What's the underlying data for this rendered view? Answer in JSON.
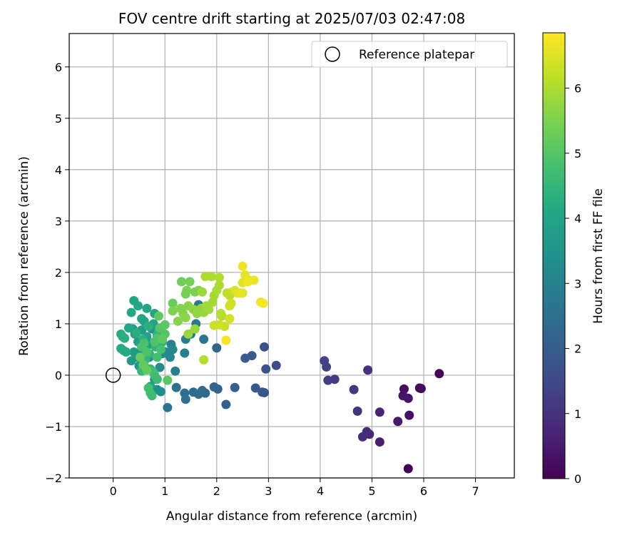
{
  "chart_data": {
    "type": "scatter",
    "title": "FOV centre drift starting at 2025/07/03 02:47:08",
    "xlabel": "Angular distance from reference (arcmin)",
    "ylabel": "Rotation from reference (arcmin)",
    "xlim": [
      -0.85,
      7.75
    ],
    "ylim": [
      -2.0,
      6.65
    ],
    "xticks": [
      0,
      1,
      2,
      3,
      4,
      5,
      6,
      7
    ],
    "yticks": [
      -2,
      -1,
      0,
      1,
      2,
      3,
      4,
      5,
      6
    ],
    "grid": true,
    "legend": {
      "placement": "top-right",
      "entries": [
        {
          "label": "Reference platepar",
          "marker": "open-circle"
        }
      ]
    },
    "reference_point": {
      "x": 0,
      "y": 0
    },
    "colorbar": {
      "label": "Hours from first FF file",
      "colormap": "viridis",
      "min": 0,
      "max": 6.85,
      "ticks": [
        0,
        1,
        2,
        3,
        4,
        5,
        6
      ]
    },
    "points": [
      {
        "x": 5.7,
        "y": -1.82,
        "c": 0.05
      },
      {
        "x": 6.3,
        "y": 0.03,
        "c": 0.1
      },
      {
        "x": 5.92,
        "y": -0.25,
        "c": 0.15
      },
      {
        "x": 5.95,
        "y": -0.26,
        "c": 0.2
      },
      {
        "x": 5.62,
        "y": -0.27,
        "c": 0.25
      },
      {
        "x": 5.72,
        "y": -0.78,
        "c": 0.3
      },
      {
        "x": 5.7,
        "y": -0.45,
        "c": 0.35
      },
      {
        "x": 5.6,
        "y": -0.4,
        "c": 0.4
      },
      {
        "x": 5.5,
        "y": -0.9,
        "c": 0.5
      },
      {
        "x": 5.15,
        "y": -1.3,
        "c": 0.6
      },
      {
        "x": 5.15,
        "y": -0.72,
        "c": 0.7
      },
      {
        "x": 4.95,
        "y": -1.15,
        "c": 0.8
      },
      {
        "x": 4.9,
        "y": -1.1,
        "c": 0.85
      },
      {
        "x": 4.82,
        "y": -1.2,
        "c": 0.9
      },
      {
        "x": 4.92,
        "y": 0.1,
        "c": 0.95
      },
      {
        "x": 4.72,
        "y": -0.7,
        "c": 1.0
      },
      {
        "x": 4.65,
        "y": -0.28,
        "c": 1.1
      },
      {
        "x": 4.28,
        "y": -0.08,
        "c": 1.2
      },
      {
        "x": 4.15,
        "y": -0.1,
        "c": 1.25
      },
      {
        "x": 4.12,
        "y": 0.16,
        "c": 1.3
      },
      {
        "x": 4.08,
        "y": 0.28,
        "c": 1.35
      },
      {
        "x": 3.15,
        "y": 0.19,
        "c": 1.6
      },
      {
        "x": 2.92,
        "y": 0.55,
        "c": 1.7
      },
      {
        "x": 2.95,
        "y": 0.12,
        "c": 1.75
      },
      {
        "x": 2.92,
        "y": -0.34,
        "c": 1.8
      },
      {
        "x": 2.88,
        "y": -0.33,
        "c": 1.85
      },
      {
        "x": 2.75,
        "y": -0.25,
        "c": 1.9
      },
      {
        "x": 2.68,
        "y": 0.38,
        "c": 1.95
      },
      {
        "x": 2.55,
        "y": 0.33,
        "c": 2.0
      },
      {
        "x": 2.35,
        "y": -0.24,
        "c": 2.05
      },
      {
        "x": 2.18,
        "y": -0.57,
        "c": 2.1
      },
      {
        "x": 2.0,
        "y": 0.53,
        "c": 2.15
      },
      {
        "x": 2.02,
        "y": -0.27,
        "c": 2.2
      },
      {
        "x": 1.95,
        "y": -0.23,
        "c": 2.25
      },
      {
        "x": 1.78,
        "y": -0.35,
        "c": 2.3
      },
      {
        "x": 1.72,
        "y": -0.3,
        "c": 2.35
      },
      {
        "x": 1.65,
        "y": -0.37,
        "c": 2.4
      },
      {
        "x": 1.55,
        "y": -0.33,
        "c": 2.45
      },
      {
        "x": 1.38,
        "y": -0.35,
        "c": 2.5
      },
      {
        "x": 1.4,
        "y": -0.47,
        "c": 2.55
      },
      {
        "x": 1.22,
        "y": -0.24,
        "c": 2.6
      },
      {
        "x": 1.05,
        "y": -0.63,
        "c": 2.65
      },
      {
        "x": 1.65,
        "y": 1.37,
        "c": 2.7
      },
      {
        "x": 1.75,
        "y": 0.7,
        "c": 2.75
      },
      {
        "x": 1.6,
        "y": 1.0,
        "c": 2.8
      },
      {
        "x": 1.5,
        "y": 0.8,
        "c": 2.85
      },
      {
        "x": 1.4,
        "y": 0.7,
        "c": 2.9
      },
      {
        "x": 1.38,
        "y": 0.43,
        "c": 2.95
      },
      {
        "x": 1.2,
        "y": 0.08,
        "c": 3.0
      },
      {
        "x": 1.12,
        "y": 0.6,
        "c": 3.05
      },
      {
        "x": 1.02,
        "y": 0.45,
        "c": 3.1
      },
      {
        "x": 1.1,
        "y": 0.35,
        "c": 3.15
      },
      {
        "x": 1.15,
        "y": 0.5,
        "c": 3.2
      },
      {
        "x": 0.95,
        "y": 0.42,
        "c": 3.25
      },
      {
        "x": 0.9,
        "y": 0.15,
        "c": 3.3
      },
      {
        "x": 0.92,
        "y": -0.32,
        "c": 3.35
      },
      {
        "x": 0.85,
        "y": -0.28,
        "c": 3.4
      },
      {
        "x": 0.8,
        "y": -0.08,
        "c": 3.45
      },
      {
        "x": 0.75,
        "y": 0.9,
        "c": 3.5
      },
      {
        "x": 0.7,
        "y": 0.35,
        "c": 3.55
      },
      {
        "x": 0.62,
        "y": 0.42,
        "c": 3.6
      },
      {
        "x": 0.55,
        "y": 0.5,
        "c": 3.62
      },
      {
        "x": 0.5,
        "y": 0.18,
        "c": 3.65
      },
      {
        "x": 0.45,
        "y": 0.35,
        "c": 3.68
      },
      {
        "x": 0.35,
        "y": 0.28,
        "c": 3.7
      },
      {
        "x": 0.4,
        "y": 0.45,
        "c": 3.72
      },
      {
        "x": 0.38,
        "y": 0.9,
        "c": 3.75
      },
      {
        "x": 0.42,
        "y": 0.8,
        "c": 3.78
      },
      {
        "x": 0.48,
        "y": 0.65,
        "c": 3.8
      },
      {
        "x": 0.55,
        "y": 0.88,
        "c": 3.82
      },
      {
        "x": 0.65,
        "y": 0.75,
        "c": 3.85
      },
      {
        "x": 0.7,
        "y": 0.6,
        "c": 3.88
      },
      {
        "x": 0.72,
        "y": -0.22,
        "c": 3.9
      },
      {
        "x": 0.8,
        "y": 1.2,
        "c": 3.92
      },
      {
        "x": 0.78,
        "y": 1.0,
        "c": 3.95
      },
      {
        "x": 0.65,
        "y": 1.3,
        "c": 3.98
      },
      {
        "x": 0.6,
        "y": 1.05,
        "c": 4.0
      },
      {
        "x": 0.55,
        "y": 1.1,
        "c": 4.02
      },
      {
        "x": 0.48,
        "y": 1.35,
        "c": 4.05
      },
      {
        "x": 0.4,
        "y": 1.45,
        "c": 4.08
      },
      {
        "x": 0.35,
        "y": 1.22,
        "c": 4.1
      },
      {
        "x": 0.3,
        "y": 0.92,
        "c": 4.12
      },
      {
        "x": 0.25,
        "y": 0.45,
        "c": 4.15
      },
      {
        "x": 0.2,
        "y": 0.48,
        "c": 4.18
      },
      {
        "x": 0.15,
        "y": 0.52,
        "c": 4.2
      },
      {
        "x": 0.18,
        "y": 0.75,
        "c": 4.22
      },
      {
        "x": 0.15,
        "y": 0.8,
        "c": 4.25
      },
      {
        "x": 0.22,
        "y": 0.72,
        "c": 4.28
      },
      {
        "x": 0.45,
        "y": 0.82,
        "c": 4.3
      },
      {
        "x": 0.58,
        "y": 0.7,
        "c": 4.32
      },
      {
        "x": 0.68,
        "y": 0.95,
        "c": 4.35
      },
      {
        "x": 0.85,
        "y": 0.78,
        "c": 4.38
      },
      {
        "x": 0.9,
        "y": 0.6,
        "c": 4.4
      },
      {
        "x": 0.95,
        "y": 0.65,
        "c": 4.42
      },
      {
        "x": 0.88,
        "y": 0.85,
        "c": 4.45
      },
      {
        "x": 0.82,
        "y": 0.55,
        "c": 4.48
      },
      {
        "x": 0.7,
        "y": 0.42,
        "c": 4.5
      },
      {
        "x": 0.62,
        "y": 0.3,
        "c": 4.52
      },
      {
        "x": 0.55,
        "y": 0.08,
        "c": 4.55
      },
      {
        "x": 0.62,
        "y": 0.15,
        "c": 4.58
      },
      {
        "x": 0.72,
        "y": 0.12,
        "c": 4.6
      },
      {
        "x": 0.8,
        "y": 0.0,
        "c": 4.62
      },
      {
        "x": 0.85,
        "y": -0.08,
        "c": 4.65
      },
      {
        "x": 0.75,
        "y": -0.4,
        "c": 4.7
      },
      {
        "x": 0.72,
        "y": -0.35,
        "c": 4.72
      },
      {
        "x": 0.68,
        "y": -0.25,
        "c": 4.75
      },
      {
        "x": 0.78,
        "y": 0.05,
        "c": 4.78
      },
      {
        "x": 0.85,
        "y": 0.35,
        "c": 4.8
      },
      {
        "x": 0.92,
        "y": 0.5,
        "c": 4.82
      },
      {
        "x": 0.6,
        "y": 0.62,
        "c": 4.85
      },
      {
        "x": 0.55,
        "y": 0.55,
        "c": 4.88
      },
      {
        "x": 0.65,
        "y": 0.45,
        "c": 4.9
      },
      {
        "x": 0.8,
        "y": 0.65,
        "c": 4.92
      },
      {
        "x": 0.85,
        "y": 0.72,
        "c": 4.95
      },
      {
        "x": 0.9,
        "y": 0.92,
        "c": 4.98
      },
      {
        "x": 1.0,
        "y": 0.8,
        "c": 5.0
      },
      {
        "x": 1.05,
        "y": -0.1,
        "c": 5.05
      },
      {
        "x": 1.0,
        "y": 0.98,
        "c": 5.1
      },
      {
        "x": 0.95,
        "y": 0.7,
        "c": 5.12
      },
      {
        "x": 0.88,
        "y": 1.15,
        "c": 5.15
      },
      {
        "x": 0.58,
        "y": 0.2,
        "c": 5.18
      },
      {
        "x": 0.65,
        "y": 0.1,
        "c": 5.2
      },
      {
        "x": 0.52,
        "y": 0.35,
        "c": 5.22
      },
      {
        "x": 1.15,
        "y": 1.4,
        "c": 5.3
      },
      {
        "x": 1.32,
        "y": 1.82,
        "c": 5.35
      },
      {
        "x": 1.48,
        "y": 1.82,
        "c": 5.4
      },
      {
        "x": 1.4,
        "y": 1.58,
        "c": 5.42
      },
      {
        "x": 1.42,
        "y": 1.65,
        "c": 5.45
      },
      {
        "x": 1.58,
        "y": 1.62,
        "c": 5.48
      },
      {
        "x": 1.65,
        "y": 1.65,
        "c": 5.5
      },
      {
        "x": 1.15,
        "y": 1.25,
        "c": 5.52
      },
      {
        "x": 1.3,
        "y": 1.3,
        "c": 5.55
      },
      {
        "x": 1.25,
        "y": 1.05,
        "c": 5.58
      },
      {
        "x": 1.35,
        "y": 1.2,
        "c": 5.6
      },
      {
        "x": 1.45,
        "y": 1.35,
        "c": 5.62
      },
      {
        "x": 1.4,
        "y": 1.12,
        "c": 5.65
      },
      {
        "x": 1.55,
        "y": 1.28,
        "c": 5.68
      },
      {
        "x": 1.62,
        "y": 1.2,
        "c": 5.7
      },
      {
        "x": 1.7,
        "y": 1.3,
        "c": 5.72
      },
      {
        "x": 1.75,
        "y": 1.22,
        "c": 5.75
      },
      {
        "x": 1.58,
        "y": 0.9,
        "c": 5.78
      },
      {
        "x": 1.45,
        "y": 0.8,
        "c": 5.8
      },
      {
        "x": 1.72,
        "y": 1.62,
        "c": 5.82
      },
      {
        "x": 1.8,
        "y": 1.35,
        "c": 5.85
      },
      {
        "x": 1.85,
        "y": 1.28,
        "c": 5.88
      },
      {
        "x": 1.92,
        "y": 1.42,
        "c": 5.9
      },
      {
        "x": 1.95,
        "y": 1.55,
        "c": 5.92
      },
      {
        "x": 2.0,
        "y": 1.65,
        "c": 5.95
      },
      {
        "x": 2.05,
        "y": 1.75,
        "c": 5.98
      },
      {
        "x": 1.78,
        "y": 1.92,
        "c": 6.0
      },
      {
        "x": 1.9,
        "y": 1.92,
        "c": 6.02
      },
      {
        "x": 2.05,
        "y": 1.9,
        "c": 6.05
      },
      {
        "x": 1.75,
        "y": 0.3,
        "c": 6.08
      },
      {
        "x": 2.08,
        "y": 1.2,
        "c": 6.1
      },
      {
        "x": 2.1,
        "y": 1.15,
        "c": 6.12
      },
      {
        "x": 2.2,
        "y": 1.6,
        "c": 6.15
      },
      {
        "x": 2.25,
        "y": 1.55,
        "c": 6.18
      },
      {
        "x": 2.3,
        "y": 1.62,
        "c": 6.2
      },
      {
        "x": 2.15,
        "y": 0.95,
        "c": 6.25
      },
      {
        "x": 1.95,
        "y": 0.97,
        "c": 6.3
      },
      {
        "x": 2.05,
        "y": 0.98,
        "c": 6.32
      },
      {
        "x": 2.25,
        "y": 1.35,
        "c": 6.35
      },
      {
        "x": 2.28,
        "y": 1.4,
        "c": 6.38
      },
      {
        "x": 2.25,
        "y": 1.1,
        "c": 6.4
      },
      {
        "x": 2.35,
        "y": 1.65,
        "c": 6.45
      },
      {
        "x": 2.4,
        "y": 1.6,
        "c": 6.5
      },
      {
        "x": 2.5,
        "y": 1.6,
        "c": 6.52
      },
      {
        "x": 2.5,
        "y": 1.8,
        "c": 6.55
      },
      {
        "x": 2.45,
        "y": 1.6,
        "c": 6.58
      },
      {
        "x": 2.62,
        "y": 1.85,
        "c": 6.6
      },
      {
        "x": 2.55,
        "y": 1.95,
        "c": 6.62
      },
      {
        "x": 2.72,
        "y": 1.85,
        "c": 6.65
      },
      {
        "x": 2.6,
        "y": 1.82,
        "c": 6.68
      },
      {
        "x": 2.5,
        "y": 2.12,
        "c": 6.7
      },
      {
        "x": 2.85,
        "y": 1.42,
        "c": 6.72
      },
      {
        "x": 2.9,
        "y": 1.4,
        "c": 6.75
      },
      {
        "x": 2.18,
        "y": 0.68,
        "c": 6.78
      }
    ]
  }
}
